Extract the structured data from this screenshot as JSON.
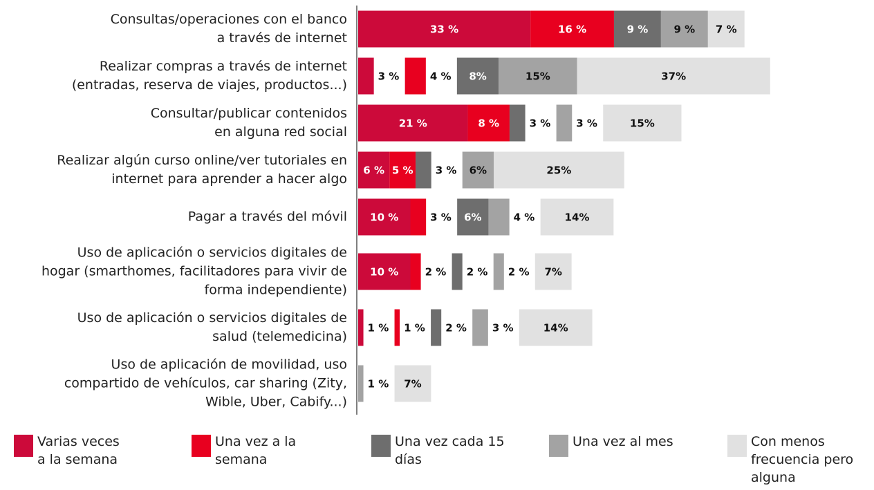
{
  "chart_data": {
    "type": "stacked-barh",
    "categories": [
      [
        "Consultas/operaciones con el banco",
        "a través de internet"
      ],
      [
        "Realizar compras a través de internet",
        "(entradas, reserva de viajes, productos...)"
      ],
      [
        "Consultar/publicar contenidos",
        "en alguna red social"
      ],
      [
        "Realizar algún curso online/ver tutoriales en",
        "internet para aprender a hacer algo"
      ],
      [
        "Pagar a través del móvil"
      ],
      [
        "Uso de aplicación o servicios digitales de",
        "hogar (smarthomes, facilitadores para vivir de",
        "forma independiente)"
      ],
      [
        "Uso de aplicación o servicios digitales de",
        "salud (telemedicina)"
      ],
      [
        "Uso de aplicación de movilidad, uso",
        "compartido de vehículos, car sharing (Zity,",
        "Wible, Uber, Cabify...)"
      ]
    ],
    "series": [
      {
        "name": "Varias veces a la semana",
        "color": "#cc0a3a",
        "values": [
          33,
          3,
          21,
          6,
          10,
          10,
          1,
          null
        ],
        "value_labels": [
          "33 %",
          "3 %",
          "21 %",
          "6 %",
          "10 %",
          "10 %",
          "1 %",
          null
        ]
      },
      {
        "name": "Una vez a la semana",
        "color": "#e8001f",
        "values": [
          16,
          4,
          8,
          5,
          3,
          2,
          1,
          null
        ],
        "value_labels": [
          "16 %",
          "4 %",
          "8 %",
          "5 %",
          "3 %",
          "2 %",
          "1 %",
          null
        ]
      },
      {
        "name": "Una vez cada 15 días",
        "color": "#6e6e6e",
        "values": [
          9,
          8,
          3,
          3,
          6,
          2,
          2,
          null
        ],
        "value_labels": [
          "9 %",
          "8%",
          "3 %",
          "3 %",
          "6%",
          "2 %",
          "2 %",
          null
        ]
      },
      {
        "name": "Una vez al mes",
        "color": "#a3a3a3",
        "values": [
          9,
          15,
          3,
          6,
          4,
          2,
          3,
          1
        ],
        "value_labels": [
          "9 %",
          "15%",
          "3 %",
          "6%",
          "4 %",
          "2 %",
          "3 %",
          "1 %"
        ]
      },
      {
        "name": "Con menos frecuencia pero alguna",
        "color": "#e1e1e1",
        "values": [
          7,
          37,
          15,
          25,
          14,
          7,
          14,
          7
        ],
        "value_labels": [
          "7 %",
          "37%",
          "15%",
          "25%",
          "14%",
          "7%",
          "14%",
          "7%"
        ]
      }
    ]
  }
}
